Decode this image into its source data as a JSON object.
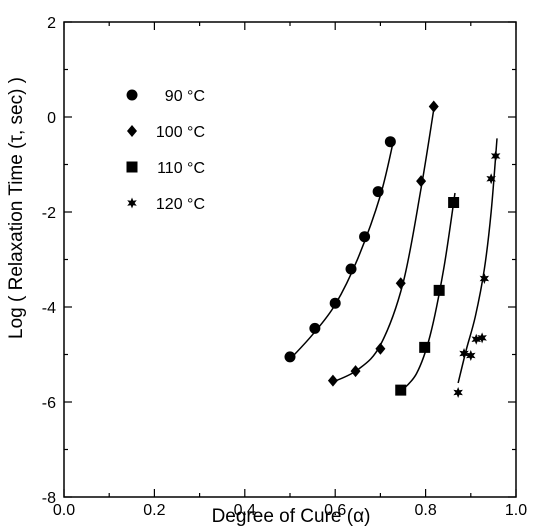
{
  "chart_data": {
    "type": "scatter",
    "xlabel": "Degree of Cure (α)",
    "ylabel": "Log ( Relaxation Time (τ, sec) )",
    "xlim": [
      0.0,
      1.0
    ],
    "ylim": [
      -8,
      2
    ],
    "xticks": [
      0.0,
      0.2,
      0.4,
      0.6,
      0.8,
      1.0
    ],
    "xtick_labels": [
      "0.0",
      "0.2",
      "0.4",
      "0.6",
      "0.8",
      "1.0"
    ],
    "yticks": [
      -8,
      -6,
      -4,
      -2,
      0,
      2
    ],
    "ytick_labels": [
      "-8",
      "-6",
      "-4",
      "-2",
      "0",
      "2"
    ],
    "grid": false,
    "legend_position": "top-left",
    "series": [
      {
        "name": "90 °C",
        "marker": "circle",
        "points": [
          [
            0.5,
            -5.05
          ],
          [
            0.555,
            -4.45
          ],
          [
            0.6,
            -3.92
          ],
          [
            0.635,
            -3.2
          ],
          [
            0.665,
            -2.52
          ],
          [
            0.695,
            -1.57
          ],
          [
            0.722,
            -0.52
          ]
        ],
        "fit": [
          [
            0.5,
            -5.1
          ],
          [
            0.55,
            -4.58
          ],
          [
            0.6,
            -3.95
          ],
          [
            0.65,
            -2.98
          ],
          [
            0.7,
            -1.65
          ],
          [
            0.73,
            -0.45
          ]
        ]
      },
      {
        "name": "100 °C",
        "marker": "diamond",
        "points": [
          [
            0.595,
            -5.55
          ],
          [
            0.645,
            -5.35
          ],
          [
            0.7,
            -4.88
          ],
          [
            0.745,
            -3.5
          ],
          [
            0.79,
            -1.35
          ],
          [
            0.818,
            0.22
          ]
        ],
        "fit": [
          [
            0.595,
            -5.58
          ],
          [
            0.65,
            -5.32
          ],
          [
            0.7,
            -4.8
          ],
          [
            0.75,
            -3.5
          ],
          [
            0.79,
            -1.5
          ],
          [
            0.82,
            0.28
          ]
        ]
      },
      {
        "name": "110 °C",
        "marker": "square",
        "points": [
          [
            0.745,
            -5.75
          ],
          [
            0.798,
            -4.85
          ],
          [
            0.83,
            -3.65
          ],
          [
            0.862,
            -1.8
          ]
        ],
        "fit": [
          [
            0.745,
            -5.78
          ],
          [
            0.78,
            -5.4
          ],
          [
            0.81,
            -4.6
          ],
          [
            0.84,
            -3.2
          ],
          [
            0.865,
            -1.6
          ]
        ]
      },
      {
        "name": "120 °C",
        "marker": "star",
        "points": [
          [
            0.872,
            -5.8
          ],
          [
            0.885,
            -4.98
          ],
          [
            0.9,
            -5.02
          ],
          [
            0.912,
            -4.68
          ],
          [
            0.925,
            -4.65
          ],
          [
            0.93,
            -3.4
          ],
          [
            0.945,
            -1.3
          ],
          [
            0.955,
            -0.82
          ]
        ],
        "fit": [
          [
            0.872,
            -5.6
          ],
          [
            0.89,
            -4.9
          ],
          [
            0.91,
            -4.2
          ],
          [
            0.93,
            -3.2
          ],
          [
            0.945,
            -2.0
          ],
          [
            0.958,
            -0.45
          ]
        ]
      }
    ]
  }
}
